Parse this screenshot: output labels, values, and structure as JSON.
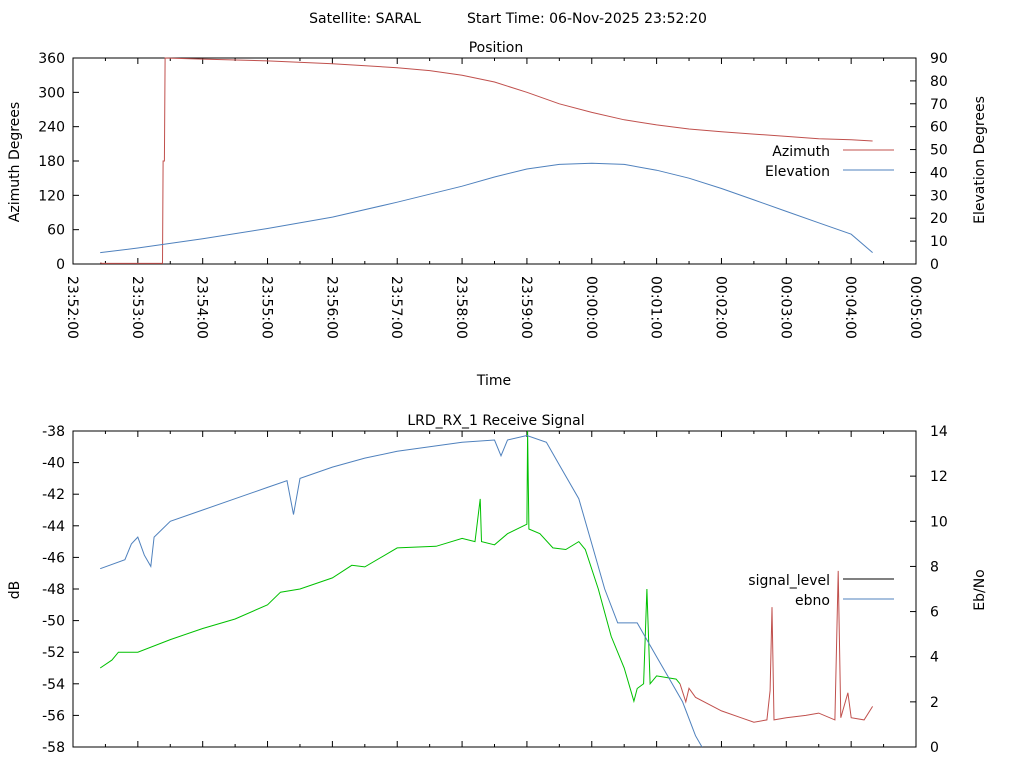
{
  "header": {
    "satellite": "Satellite: SARAL",
    "start_time": "Start Time: 06-Nov-2025 23:52:20"
  },
  "chart_data": [
    {
      "type": "line",
      "title": "Position",
      "xlabel": "Time",
      "ylabel": "Azimuth Degrees",
      "y2label": "Elevation Degrees",
      "x_unit": "minutes after 23:52:00",
      "xlim": [
        0,
        13
      ],
      "ylim": [
        0,
        360
      ],
      "y2lim": [
        0,
        90
      ],
      "xticks": [
        "23:52:00",
        "23:53:00",
        "23:54:00",
        "23:55:00",
        "23:56:00",
        "23:57:00",
        "23:58:00",
        "23:59:00",
        "00:00:00",
        "00:01:00",
        "00:02:00",
        "00:03:00",
        "00:04:00",
        "00:05:00"
      ],
      "yticks": [
        "0",
        "60",
        "120",
        "180",
        "240",
        "300",
        "360"
      ],
      "y2ticks": [
        "0",
        "10",
        "20",
        "30",
        "40",
        "50",
        "60",
        "70",
        "80",
        "90"
      ],
      "legend_position": "right",
      "series": [
        {
          "name": "Azimuth",
          "color": "#c0504d",
          "axis": "y",
          "points": [
            [
              0.42,
              2
            ],
            [
              0.45,
              1
            ],
            [
              1.38,
              1
            ],
            [
              1.39,
              180
            ],
            [
              1.41,
              180
            ],
            [
              1.42,
              360
            ],
            [
              2,
              358
            ],
            [
              3,
              355
            ],
            [
              4,
              350
            ],
            [
              5,
              343
            ],
            [
              5.5,
              338
            ],
            [
              6,
              330
            ],
            [
              6.5,
              318
            ],
            [
              7,
              300
            ],
            [
              7.5,
              280
            ],
            [
              8,
              265
            ],
            [
              8.5,
              252
            ],
            [
              9,
              243
            ],
            [
              9.5,
              236
            ],
            [
              10,
              231
            ],
            [
              10.5,
              227
            ],
            [
              11,
              223
            ],
            [
              11.5,
              219
            ],
            [
              12,
              217
            ],
            [
              12.33,
              215
            ]
          ]
        },
        {
          "name": "Elevation",
          "color": "#4f81bd",
          "axis": "y2",
          "points": [
            [
              0.42,
              5
            ],
            [
              1,
              7
            ],
            [
              2,
              11
            ],
            [
              3,
              15.5
            ],
            [
              4,
              20.5
            ],
            [
              5,
              27
            ],
            [
              6,
              34
            ],
            [
              6.5,
              38
            ],
            [
              7,
              41.5
            ],
            [
              7.5,
              43.5
            ],
            [
              8,
              44
            ],
            [
              8.5,
              43.5
            ],
            [
              9,
              41
            ],
            [
              9.5,
              37.5
            ],
            [
              10,
              33
            ],
            [
              10.5,
              28
            ],
            [
              11,
              23
            ],
            [
              11.5,
              18
            ],
            [
              12,
              13
            ],
            [
              12.33,
              5
            ]
          ]
        }
      ]
    },
    {
      "type": "line",
      "title": "LRD_RX_1 Receive Signal",
      "ylabel": "dB",
      "y2label": "Eb/No",
      "x_unit": "minutes after 23:52:00",
      "xlim": [
        0,
        13
      ],
      "ylim": [
        -58,
        -38
      ],
      "y2lim": [
        0,
        14
      ],
      "yticks": [
        "-58",
        "-56",
        "-54",
        "-52",
        "-50",
        "-48",
        "-46",
        "-44",
        "-42",
        "-40",
        "-38"
      ],
      "y2ticks": [
        "0",
        "2",
        "4",
        "6",
        "8",
        "10",
        "12",
        "14"
      ],
      "legend_position": "right",
      "series": [
        {
          "name": "signal_level",
          "color": "#00c000",
          "legend_color": "#000000",
          "axis": "y",
          "points": [
            [
              0.42,
              -53
            ],
            [
              0.6,
              -52.5
            ],
            [
              0.7,
              -52
            ],
            [
              1,
              -52
            ],
            [
              1.5,
              -51.2
            ],
            [
              2,
              -50.5
            ],
            [
              2.5,
              -49.9
            ],
            [
              3,
              -49
            ],
            [
              3.2,
              -48.2
            ],
            [
              3.5,
              -48
            ],
            [
              4,
              -47.3
            ],
            [
              4.3,
              -46.5
            ],
            [
              4.5,
              -46.6
            ],
            [
              5,
              -45.4
            ],
            [
              5.6,
              -45.3
            ],
            [
              6,
              -44.8
            ],
            [
              6.2,
              -45
            ],
            [
              6.28,
              -42.3
            ],
            [
              6.3,
              -45
            ],
            [
              6.5,
              -45.2
            ],
            [
              6.7,
              -44.5
            ],
            [
              7,
              -43.9
            ],
            [
              7.01,
              -38
            ],
            [
              7.03,
              -44.2
            ],
            [
              7.2,
              -44.5
            ],
            [
              7.4,
              -45.4
            ],
            [
              7.6,
              -45.5
            ],
            [
              7.8,
              -45
            ],
            [
              7.9,
              -45.5
            ],
            [
              8.1,
              -48
            ],
            [
              8.3,
              -51
            ],
            [
              8.5,
              -53
            ],
            [
              8.65,
              -55.1
            ],
            [
              8.7,
              -54.3
            ],
            [
              8.8,
              -54
            ],
            [
              8.85,
              -48
            ],
            [
              8.9,
              -54
            ],
            [
              9.0,
              -53.5
            ],
            [
              9.3,
              -53.7
            ],
            [
              9.36,
              -54
            ]
          ]
        },
        {
          "name": "ebno",
          "color": "#4f81bd",
          "legend_color": "#4f81bd",
          "axis": "y2",
          "points": [
            [
              0.42,
              7.9
            ],
            [
              0.8,
              8.3
            ],
            [
              0.9,
              9
            ],
            [
              1,
              9.3
            ],
            [
              1.1,
              8.5
            ],
            [
              1.2,
              8.0
            ],
            [
              1.25,
              9.3
            ],
            [
              1.5,
              10
            ],
            [
              2,
              10.5
            ],
            [
              2.5,
              11
            ],
            [
              3,
              11.5
            ],
            [
              3.3,
              11.8
            ],
            [
              3.4,
              10.3
            ],
            [
              3.5,
              11.9
            ],
            [
              4,
              12.4
            ],
            [
              4.5,
              12.8
            ],
            [
              5,
              13.1
            ],
            [
              6,
              13.5
            ],
            [
              6.5,
              13.6
            ],
            [
              6.6,
              12.9
            ],
            [
              6.7,
              13.6
            ],
            [
              7,
              13.8
            ],
            [
              7.3,
              13.5
            ],
            [
              7.5,
              12.5
            ],
            [
              7.8,
              11
            ],
            [
              8.0,
              9
            ],
            [
              8.2,
              7
            ],
            [
              8.4,
              5.5
            ],
            [
              8.7,
              5.5
            ],
            [
              9,
              4
            ],
            [
              9.2,
              3
            ],
            [
              9.4,
              2
            ],
            [
              9.6,
              0.5
            ],
            [
              9.7,
              0
            ]
          ]
        },
        {
          "name": "",
          "color": "#c0504d",
          "axis": "y2",
          "points": [
            [
              9.36,
              2.8
            ],
            [
              9.45,
              2
            ],
            [
              9.5,
              2.6
            ],
            [
              9.6,
              2.2
            ],
            [
              10,
              1.6
            ],
            [
              10.3,
              1.3
            ],
            [
              10.5,
              1.1
            ],
            [
              10.7,
              1.2
            ],
            [
              10.75,
              2.5
            ],
            [
              10.78,
              6.2
            ],
            [
              10.81,
              1.2
            ],
            [
              11,
              1.3
            ],
            [
              11.3,
              1.4
            ],
            [
              11.5,
              1.5
            ],
            [
              11.75,
              1.2
            ],
            [
              11.8,
              7.8
            ],
            [
              11.84,
              1.3
            ],
            [
              11.95,
              2.4
            ],
            [
              12,
              1.3
            ],
            [
              12.2,
              1.2
            ],
            [
              12.33,
              1.8
            ]
          ]
        }
      ]
    }
  ]
}
